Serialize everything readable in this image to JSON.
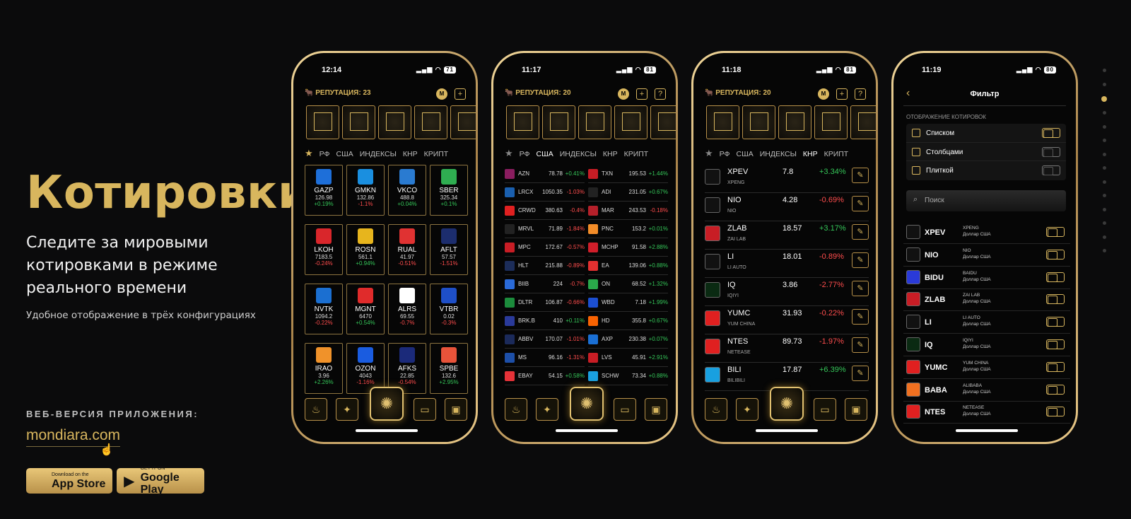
{
  "hero": {
    "title": "Котировки",
    "subtitle": "Следите за мировыми котировками в режиме реального времени",
    "caption": "Удобное отображение в трёх конфигурациях",
    "web_label": "ВЕБ-ВЕРСИЯ ПРИЛОЖЕНИЯ:",
    "web_link": "mondiara.com"
  },
  "stores": {
    "appstore_small": "Download on the",
    "appstore_big": "App Store",
    "google_small": "GET IT ON",
    "google_big": "Google Play"
  },
  "colors": {
    "accent": "#d8b65e",
    "up": "#35c759",
    "down": "#ff4d4d"
  },
  "phone1": {
    "time": "12:14",
    "battery": "71",
    "reputation": "РЕПУТАЦИЯ: 23",
    "tabs": [
      "РФ",
      "США",
      "ИНДЕКСЫ",
      "КНР",
      "КРИПТ"
    ],
    "tiles": [
      {
        "t": "GAZP",
        "p": "126.98",
        "c": "+0.19%",
        "d": "up",
        "col": "#1e6fd9"
      },
      {
        "t": "GMKN",
        "p": "132.86",
        "c": "-1.1%",
        "d": "dn",
        "col": "#1a8fe0"
      },
      {
        "t": "VKCO",
        "p": "488.8",
        "c": "+0.04%",
        "d": "up",
        "col": "#2a7bd1"
      },
      {
        "t": "SBER",
        "p": "325.34",
        "c": "+0.1%",
        "d": "up",
        "col": "#2fae51"
      },
      {
        "t": "LKOH",
        "p": "7183.5",
        "c": "-0.24%",
        "d": "dn",
        "col": "#d9262b"
      },
      {
        "t": "ROSN",
        "p": "561.1",
        "c": "+0.94%",
        "d": "up",
        "col": "#e7b51d"
      },
      {
        "t": "RUAL",
        "p": "41.97",
        "c": "-0.51%",
        "d": "dn",
        "col": "#e03232"
      },
      {
        "t": "AFLT",
        "p": "57.57",
        "c": "-1.51%",
        "d": "dn",
        "col": "#1c2d6e"
      },
      {
        "t": "NVTK",
        "p": "1094.2",
        "c": "-0.22%",
        "d": "dn",
        "col": "#1b6fd1"
      },
      {
        "t": "MGNT",
        "p": "6470",
        "c": "+0.54%",
        "d": "up",
        "col": "#e02b2b"
      },
      {
        "t": "ALRS",
        "p": "69.55",
        "c": "-0.7%",
        "d": "dn",
        "col": "#ffffff"
      },
      {
        "t": "VTBR",
        "p": "0.02",
        "c": "-0.3%",
        "d": "dn",
        "col": "#1e4fc8"
      },
      {
        "t": "IRAO",
        "p": "3.96",
        "c": "+2.26%",
        "d": "up",
        "col": "#f0922a"
      },
      {
        "t": "OZON",
        "p": "4043",
        "c": "-1.16%",
        "d": "dn",
        "col": "#1a5ce0"
      },
      {
        "t": "AFKS",
        "p": "22.85",
        "c": "-0.54%",
        "d": "dn",
        "col": "#1b2a7a"
      },
      {
        "t": "SPBE",
        "p": "132.6",
        "c": "+2.95%",
        "d": "up",
        "col": "#e8533a"
      }
    ]
  },
  "phone2": {
    "time": "11:17",
    "battery": "81",
    "reputation": "РЕПУТАЦИЯ: 20",
    "tabs": [
      "РФ",
      "США",
      "ИНДЕКСЫ",
      "КНР",
      "КРИПТ"
    ],
    "left": [
      {
        "t": "AZN",
        "p": "78.78",
        "c": "+0.41%",
        "d": "up",
        "col": "#8a1d5f"
      },
      {
        "t": "LRCX",
        "p": "1050.35",
        "c": "-1.03%",
        "d": "dn",
        "col": "#1a5fae"
      },
      {
        "t": "CRWD",
        "p": "380.63",
        "c": "-0.4%",
        "d": "dn",
        "col": "#e02020"
      },
      {
        "t": "MRVL",
        "p": "71.89",
        "c": "-1.84%",
        "d": "dn",
        "col": "#222"
      },
      {
        "t": "MPC",
        "p": "172.67",
        "c": "-0.57%",
        "d": "dn",
        "col": "#c81d25"
      },
      {
        "t": "HLT",
        "p": "215.88",
        "c": "-0.89%",
        "d": "dn",
        "col": "#1c2d5a"
      },
      {
        "t": "BIIB",
        "p": "224",
        "c": "-0.7%",
        "d": "dn",
        "col": "#2a6ad8"
      },
      {
        "t": "DLTR",
        "p": "106.87",
        "c": "-0.66%",
        "d": "dn",
        "col": "#1c8c3c"
      },
      {
        "t": "BRK.B",
        "p": "410",
        "c": "+0.11%",
        "d": "up",
        "col": "#2a3a9a"
      },
      {
        "t": "ABBV",
        "p": "170.07",
        "c": "-1.01%",
        "d": "dn",
        "col": "#1b2a5a"
      },
      {
        "t": "MS",
        "p": "96.16",
        "c": "-1.31%",
        "d": "dn",
        "col": "#1d4fa8"
      },
      {
        "t": "EBAY",
        "p": "54.15",
        "c": "+0.58%",
        "d": "up",
        "col": "#e53238"
      }
    ],
    "right": [
      {
        "t": "TXN",
        "p": "195.53",
        "c": "+1.44%",
        "d": "up",
        "col": "#c81d25"
      },
      {
        "t": "ADI",
        "p": "231.05",
        "c": "+0.67%",
        "d": "up",
        "col": "#222"
      },
      {
        "t": "MAR",
        "p": "243.53",
        "c": "-0.18%",
        "d": "dn",
        "col": "#b5202a"
      },
      {
        "t": "PNC",
        "p": "153.2",
        "c": "+0.01%",
        "d": "up",
        "col": "#f28c28"
      },
      {
        "t": "MCHP",
        "p": "91.58",
        "c": "+2.88%",
        "d": "up",
        "col": "#d01e2a"
      },
      {
        "t": "EA",
        "p": "139.06",
        "c": "+0.88%",
        "d": "up",
        "col": "#e53030"
      },
      {
        "t": "ON",
        "p": "68.52",
        "c": "+1.32%",
        "d": "up",
        "col": "#2aa84a"
      },
      {
        "t": "WBD",
        "p": "7.18",
        "c": "+1.99%",
        "d": "up",
        "col": "#1c4fd1"
      },
      {
        "t": "HD",
        "p": "355.8",
        "c": "+0.67%",
        "d": "up",
        "col": "#f96302"
      },
      {
        "t": "AXP",
        "p": "230.38",
        "c": "+0.07%",
        "d": "up",
        "col": "#1a6fd4"
      },
      {
        "t": "LVS",
        "p": "45.91",
        "c": "+2.91%",
        "d": "up",
        "col": "#c81d25"
      },
      {
        "t": "SCHW",
        "p": "73.34",
        "c": "+0.88%",
        "d": "up",
        "col": "#1aa0e0"
      }
    ]
  },
  "phone3": {
    "time": "11:18",
    "battery": "81",
    "reputation": "РЕПУТАЦИЯ: 20",
    "tabs": [
      "РФ",
      "США",
      "ИНДЕКСЫ",
      "КНР",
      "КРИПТ"
    ],
    "rows": [
      {
        "t": "XPEV",
        "n": "XPENG",
        "p": "7.8",
        "c": "+3.34%",
        "d": "up",
        "col": "#111"
      },
      {
        "t": "NIO",
        "n": "NIO",
        "p": "4.28",
        "c": "-0.69%",
        "d": "dn",
        "col": "#111"
      },
      {
        "t": "ZLAB",
        "n": "ZAI LAB",
        "p": "18.57",
        "c": "+3.17%",
        "d": "up",
        "col": "#c81d25"
      },
      {
        "t": "LI",
        "n": "LI AUTO",
        "p": "18.01",
        "c": "-0.89%",
        "d": "dn",
        "col": "#111"
      },
      {
        "t": "IQ",
        "n": "IQIYI",
        "p": "3.86",
        "c": "-2.77%",
        "d": "dn",
        "col": "#0a2a12"
      },
      {
        "t": "YUMC",
        "n": "YUM CHINA",
        "p": "31.93",
        "c": "-0.22%",
        "d": "dn",
        "col": "#e02020"
      },
      {
        "t": "NTES",
        "n": "NETEASE",
        "p": "89.73",
        "c": "-1.97%",
        "d": "dn",
        "col": "#e02020"
      },
      {
        "t": "BILI",
        "n": "BILIBILI",
        "p": "17.87",
        "c": "+6.39%",
        "d": "up",
        "col": "#18a0e0"
      }
    ]
  },
  "phone4": {
    "time": "11:19",
    "battery": "80",
    "title": "Фильтр",
    "section": "ОТОБРАЖЕНИЕ КОТИРОВОК",
    "options": [
      {
        "label": "Списком",
        "on": true
      },
      {
        "label": "Столбцами",
        "on": false
      },
      {
        "label": "Плиткой",
        "on": false
      }
    ],
    "search_placeholder": "Поиск",
    "rows": [
      {
        "t": "XPEV",
        "n1": "XPENG",
        "n2": "Доллар США",
        "col": "#111"
      },
      {
        "t": "NIO",
        "n1": "NIO",
        "n2": "Доллар США",
        "col": "#111"
      },
      {
        "t": "BIDU",
        "n1": "BAIDU",
        "n2": "Доллар США",
        "col": "#2a3ad8"
      },
      {
        "t": "ZLAB",
        "n1": "ZAI LAB",
        "n2": "Доллар США",
        "col": "#c81d25"
      },
      {
        "t": "LI",
        "n1": "LI AUTO",
        "n2": "Доллар США",
        "col": "#111"
      },
      {
        "t": "IQ",
        "n1": "IQIYI",
        "n2": "Доллар США",
        "col": "#0a2a12"
      },
      {
        "t": "YUMC",
        "n1": "YUM CHINA",
        "n2": "Доллар США",
        "col": "#e02020"
      },
      {
        "t": "BABA",
        "n1": "ALIBABA",
        "n2": "Доллар США",
        "col": "#f07020"
      },
      {
        "t": "NTES",
        "n1": "NETEASE",
        "n2": "Доллар США",
        "col": "#e02020"
      }
    ]
  }
}
